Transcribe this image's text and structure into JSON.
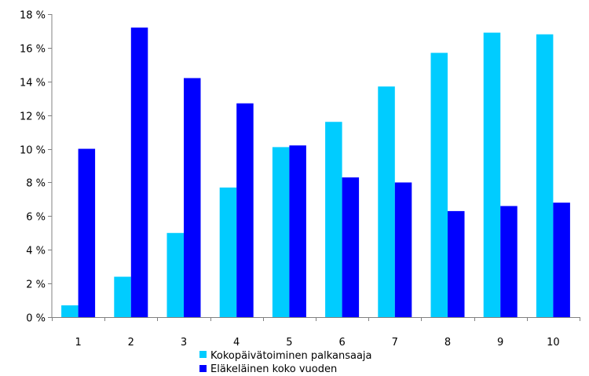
{
  "chart_data": {
    "type": "bar",
    "categories": [
      "1",
      "2",
      "3",
      "4",
      "5",
      "6",
      "7",
      "8",
      "9",
      "10"
    ],
    "series": [
      {
        "name": "Kokopäivätoiminen palkansaaja",
        "color": "#00ccff",
        "values": [
          0.7,
          2.4,
          5.0,
          7.7,
          10.1,
          11.6,
          13.7,
          15.7,
          16.9,
          16.8
        ]
      },
      {
        "name": "Eläkeläinen koko vuoden",
        "color": "#0000ff",
        "values": [
          10.0,
          17.2,
          14.2,
          12.7,
          10.2,
          8.3,
          8.0,
          6.3,
          6.6,
          6.8
        ]
      }
    ],
    "yticks": [
      "0 %",
      "2 %",
      "4 %",
      "6 %",
      "8 %",
      "10 %",
      "12 %",
      "14 %",
      "16 %",
      "18 %"
    ],
    "ylim": [
      0,
      18
    ],
    "grid": false,
    "legend_position": "bottom"
  }
}
